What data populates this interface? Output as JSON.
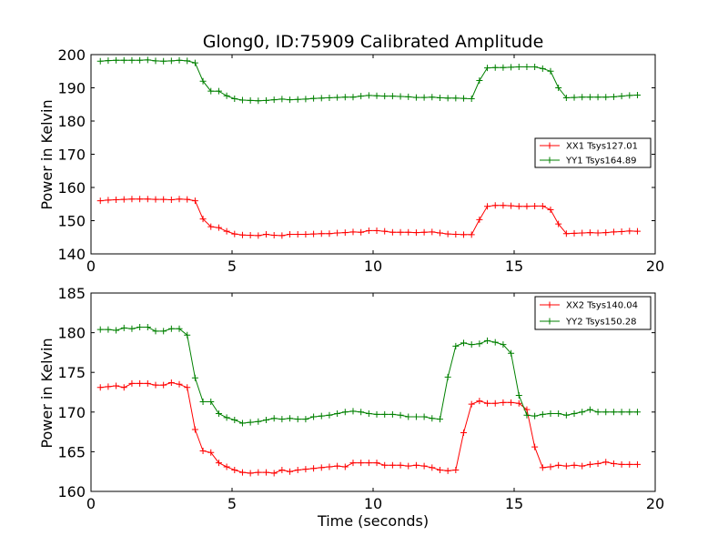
{
  "colors": {
    "xx": "#ff0000",
    "yy": "#008000"
  },
  "chart_data": [
    {
      "type": "line",
      "title": "Glong0, ID:75909 Calibrated Amplitude",
      "xlabel": "",
      "ylabel": "Power in Kelvin",
      "xlim": [
        0,
        20
      ],
      "ylim": [
        140,
        200
      ],
      "xticks": [
        0,
        5,
        10,
        15,
        20
      ],
      "yticks": [
        140,
        150,
        160,
        170,
        180,
        190,
        200
      ],
      "legend_position": "center-right",
      "series": [
        {
          "name": "XX1 Tsys127.01",
          "color": "#ff0000",
          "x": [
            0.33,
            0.61,
            0.89,
            1.17,
            1.45,
            1.73,
            2.01,
            2.29,
            2.57,
            2.85,
            3.13,
            3.41,
            3.69,
            3.97,
            4.25,
            4.53,
            4.81,
            5.09,
            5.37,
            5.65,
            5.93,
            6.21,
            6.49,
            6.77,
            7.05,
            7.33,
            7.61,
            7.89,
            8.17,
            8.45,
            8.73,
            9.01,
            9.29,
            9.57,
            9.85,
            10.13,
            10.41,
            10.69,
            10.97,
            11.25,
            11.53,
            11.81,
            12.09,
            12.37,
            12.65,
            12.93,
            13.21,
            13.49,
            13.77,
            14.05,
            14.33,
            14.61,
            14.89,
            15.17,
            15.45,
            15.73,
            16.01,
            16.29,
            16.57,
            16.85,
            17.13,
            17.41,
            17.69,
            17.97,
            18.25,
            18.53,
            18.81,
            19.09,
            19.37
          ],
          "y": [
            156.0,
            156.2,
            156.3,
            156.4,
            156.5,
            156.5,
            156.5,
            156.4,
            156.4,
            156.3,
            156.5,
            156.4,
            156.0,
            150.5,
            148.2,
            147.9,
            146.8,
            146.0,
            145.7,
            145.6,
            145.5,
            145.9,
            145.6,
            145.5,
            145.9,
            145.9,
            145.9,
            146.0,
            146.1,
            146.1,
            146.3,
            146.4,
            146.6,
            146.5,
            147.0,
            147.0,
            146.8,
            146.5,
            146.5,
            146.5,
            146.4,
            146.5,
            146.6,
            146.3,
            146.0,
            145.9,
            145.8,
            145.8,
            150.3,
            154.3,
            154.6,
            154.6,
            154.5,
            154.3,
            154.3,
            154.4,
            154.4,
            153.3,
            149.0,
            146.1,
            146.2,
            146.3,
            146.4,
            146.3,
            146.4,
            146.6,
            146.7,
            146.9,
            146.8
          ]
        },
        {
          "name": "YY1 Tsys164.89",
          "color": "#008000",
          "x": [
            0.33,
            0.61,
            0.89,
            1.17,
            1.45,
            1.73,
            2.01,
            2.29,
            2.57,
            2.85,
            3.13,
            3.41,
            3.69,
            3.97,
            4.25,
            4.53,
            4.81,
            5.09,
            5.37,
            5.65,
            5.93,
            6.21,
            6.49,
            6.77,
            7.05,
            7.33,
            7.61,
            7.89,
            8.17,
            8.45,
            8.73,
            9.01,
            9.29,
            9.57,
            9.85,
            10.13,
            10.41,
            10.69,
            10.97,
            11.25,
            11.53,
            11.81,
            12.09,
            12.37,
            12.65,
            12.93,
            13.21,
            13.49,
            13.77,
            14.05,
            14.33,
            14.61,
            14.89,
            15.17,
            15.45,
            15.73,
            16.01,
            16.29,
            16.57,
            16.85,
            17.13,
            17.41,
            17.69,
            17.97,
            18.25,
            18.53,
            18.81,
            19.09,
            19.37
          ],
          "y": [
            198.0,
            198.2,
            198.3,
            198.3,
            198.3,
            198.3,
            198.4,
            198.1,
            198.0,
            198.1,
            198.3,
            198.1,
            197.5,
            192.0,
            189.0,
            189.0,
            187.6,
            186.7,
            186.3,
            186.2,
            186.1,
            186.2,
            186.4,
            186.6,
            186.4,
            186.5,
            186.6,
            186.8,
            186.9,
            187.0,
            187.1,
            187.2,
            187.2,
            187.5,
            187.7,
            187.6,
            187.5,
            187.5,
            187.4,
            187.3,
            187.1,
            187.1,
            187.2,
            187.0,
            186.9,
            186.9,
            186.8,
            186.7,
            192.2,
            196.0,
            196.1,
            196.1,
            196.2,
            196.3,
            196.3,
            196.3,
            195.8,
            195.0,
            190.0,
            187.0,
            187.1,
            187.2,
            187.2,
            187.2,
            187.2,
            187.3,
            187.5,
            187.7,
            187.8
          ]
        }
      ]
    },
    {
      "type": "line",
      "title": "",
      "xlabel": "Time (seconds)",
      "ylabel": "Power in Kelvin",
      "xlim": [
        0,
        20
      ],
      "ylim": [
        160,
        185
      ],
      "xticks": [
        0,
        5,
        10,
        15,
        20
      ],
      "yticks": [
        160,
        165,
        170,
        175,
        180,
        185
      ],
      "legend_position": "top-right",
      "series": [
        {
          "name": "XX2 Tsys140.04",
          "color": "#ff0000",
          "x": [
            0.33,
            0.61,
            0.89,
            1.17,
            1.45,
            1.73,
            2.01,
            2.29,
            2.57,
            2.85,
            3.13,
            3.41,
            3.69,
            3.97,
            4.25,
            4.53,
            4.81,
            5.09,
            5.37,
            5.65,
            5.93,
            6.21,
            6.49,
            6.77,
            7.05,
            7.33,
            7.61,
            7.89,
            8.17,
            8.45,
            8.73,
            9.01,
            9.29,
            9.57,
            9.85,
            10.13,
            10.41,
            10.69,
            10.97,
            11.25,
            11.53,
            11.81,
            12.09,
            12.37,
            12.65,
            12.93,
            13.21,
            13.49,
            13.77,
            14.05,
            14.33,
            14.61,
            14.89,
            15.17,
            15.45,
            15.73,
            16.01,
            16.29,
            16.57,
            16.85,
            17.13,
            17.41,
            17.69,
            17.97,
            18.25,
            18.53,
            18.81,
            19.09,
            19.37
          ],
          "y": [
            173.1,
            173.2,
            173.3,
            173.1,
            173.6,
            173.6,
            173.6,
            173.4,
            173.4,
            173.7,
            173.5,
            173.1,
            167.8,
            165.1,
            164.9,
            163.6,
            163.1,
            162.7,
            162.4,
            162.3,
            162.4,
            162.4,
            162.3,
            162.7,
            162.5,
            162.7,
            162.8,
            162.9,
            163.0,
            163.1,
            163.2,
            163.1,
            163.6,
            163.6,
            163.6,
            163.6,
            163.3,
            163.3,
            163.3,
            163.2,
            163.3,
            163.2,
            163.0,
            162.7,
            162.6,
            162.7,
            167.4,
            171.0,
            171.4,
            171.1,
            171.1,
            171.2,
            171.2,
            171.1,
            170.3,
            165.6,
            163.0,
            163.1,
            163.3,
            163.2,
            163.3,
            163.2,
            163.4,
            163.5,
            163.7,
            163.5,
            163.4,
            163.4,
            163.4
          ]
        },
        {
          "name": "YY2 Tsys150.28",
          "color": "#008000",
          "x": [
            0.33,
            0.61,
            0.89,
            1.17,
            1.45,
            1.73,
            2.01,
            2.29,
            2.57,
            2.85,
            3.13,
            3.41,
            3.69,
            3.97,
            4.25,
            4.53,
            4.81,
            5.09,
            5.37,
            5.65,
            5.93,
            6.21,
            6.49,
            6.77,
            7.05,
            7.33,
            7.61,
            7.89,
            8.17,
            8.45,
            8.73,
            9.01,
            9.29,
            9.57,
            9.85,
            10.13,
            10.41,
            10.69,
            10.97,
            11.25,
            11.53,
            11.81,
            12.09,
            12.37,
            12.65,
            12.93,
            13.21,
            13.49,
            13.77,
            14.05,
            14.33,
            14.61,
            14.89,
            15.17,
            15.45,
            15.73,
            16.01,
            16.29,
            16.57,
            16.85,
            17.13,
            17.41,
            17.69,
            17.97,
            18.25,
            18.53,
            18.81,
            19.09,
            19.37
          ],
          "y": [
            180.4,
            180.4,
            180.3,
            180.6,
            180.5,
            180.7,
            180.7,
            180.2,
            180.2,
            180.5,
            180.5,
            179.7,
            174.3,
            171.3,
            171.3,
            169.8,
            169.3,
            169.0,
            168.6,
            168.7,
            168.8,
            169.0,
            169.2,
            169.1,
            169.2,
            169.1,
            169.1,
            169.4,
            169.5,
            169.6,
            169.8,
            170.0,
            170.1,
            170.0,
            169.8,
            169.7,
            169.7,
            169.7,
            169.6,
            169.4,
            169.4,
            169.4,
            169.2,
            169.1,
            174.4,
            178.3,
            178.7,
            178.5,
            178.6,
            179.0,
            178.8,
            178.5,
            177.4,
            172.1,
            169.6,
            169.5,
            169.7,
            169.8,
            169.8,
            169.6,
            169.8,
            170.0,
            170.3,
            170.0,
            170.0,
            170.0,
            170.0,
            170.0,
            170.0
          ]
        }
      ]
    }
  ]
}
